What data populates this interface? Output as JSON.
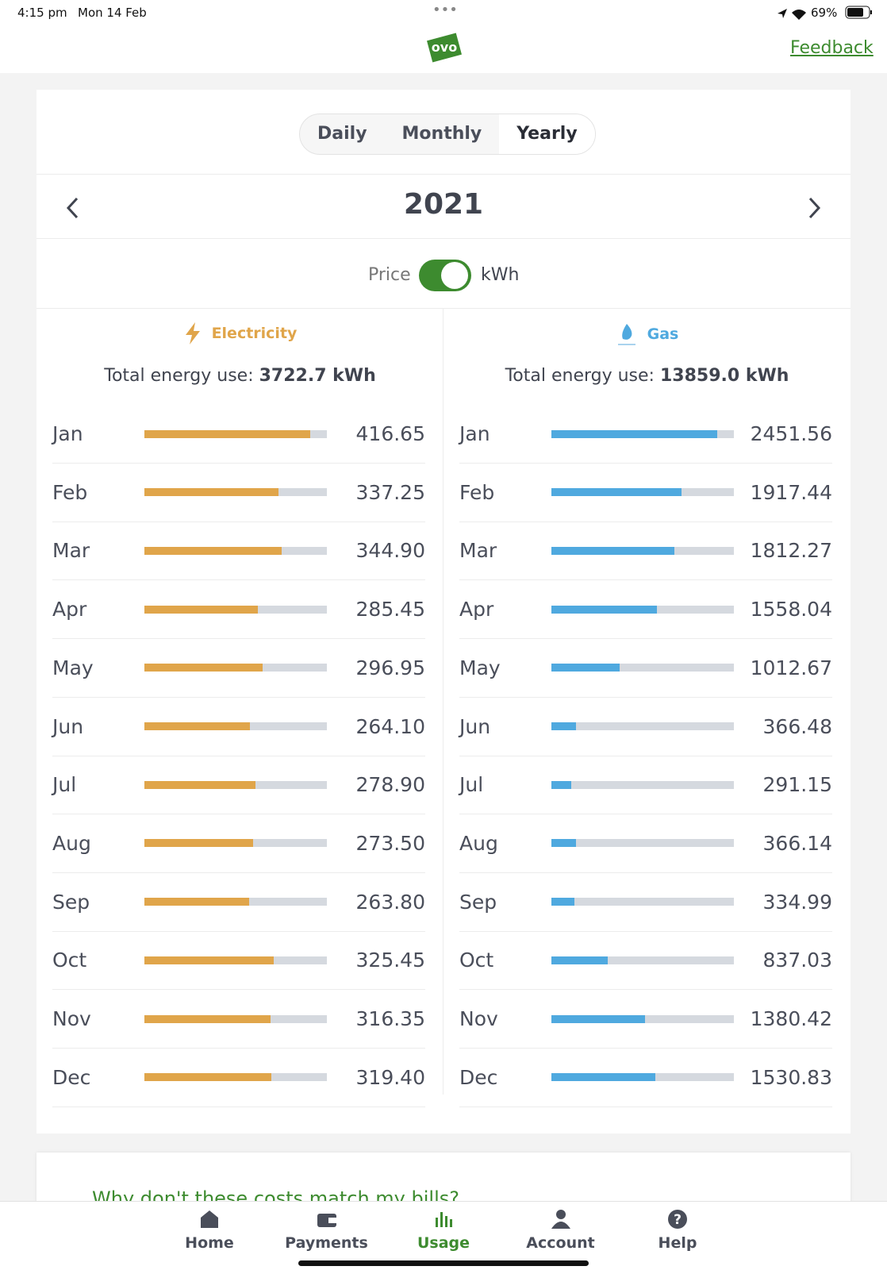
{
  "status_bar": {
    "time": "4:15 pm",
    "date": "Mon 14 Feb",
    "battery": "69%"
  },
  "header": {
    "logo": "ovo",
    "feedback": "Feedback"
  },
  "tabs": {
    "items": [
      "Daily",
      "Monthly",
      "Yearly"
    ],
    "active": "Yearly"
  },
  "period": {
    "year": "2021"
  },
  "toggle": {
    "left": "Price",
    "right": "kWh"
  },
  "electricity": {
    "title": "Electricity",
    "total_label": "Total energy use:",
    "total": "3722.7 kWh",
    "color": "#e0a54a",
    "months": [
      "Jan",
      "Feb",
      "Mar",
      "Apr",
      "May",
      "Jun",
      "Jul",
      "Aug",
      "Sep",
      "Oct",
      "Nov",
      "Dec"
    ],
    "values": [
      416.65,
      337.25,
      344.9,
      285.45,
      296.95,
      264.1,
      278.9,
      273.5,
      263.8,
      325.45,
      316.35,
      319.4
    ],
    "value_labels": [
      "416.65",
      "337.25",
      "344.90",
      "285.45",
      "296.95",
      "264.10",
      "278.90",
      "273.50",
      "263.80",
      "325.45",
      "316.35",
      "319.40"
    ]
  },
  "gas": {
    "title": "Gas",
    "total_label": "Total energy use:",
    "total": "13859.0 kWh",
    "color": "#4fa9df",
    "months": [
      "Jan",
      "Feb",
      "Mar",
      "Apr",
      "May",
      "Jun",
      "Jul",
      "Aug",
      "Sep",
      "Oct",
      "Nov",
      "Dec"
    ],
    "values": [
      2451.56,
      1917.44,
      1812.27,
      1558.04,
      1012.67,
      366.48,
      291.15,
      366.14,
      334.99,
      837.03,
      1380.42,
      1530.83
    ],
    "value_labels": [
      "2451.56",
      "1917.44",
      "1812.27",
      "1558.04",
      "1012.67",
      "366.48",
      "291.15",
      "366.14",
      "334.99",
      "837.03",
      "1380.42",
      "1530.83"
    ]
  },
  "faq": {
    "question": "Why don't these costs match my bills?"
  },
  "nav": {
    "items": [
      "Home",
      "Payments",
      "Usage",
      "Account",
      "Help"
    ],
    "active": "Usage"
  }
}
